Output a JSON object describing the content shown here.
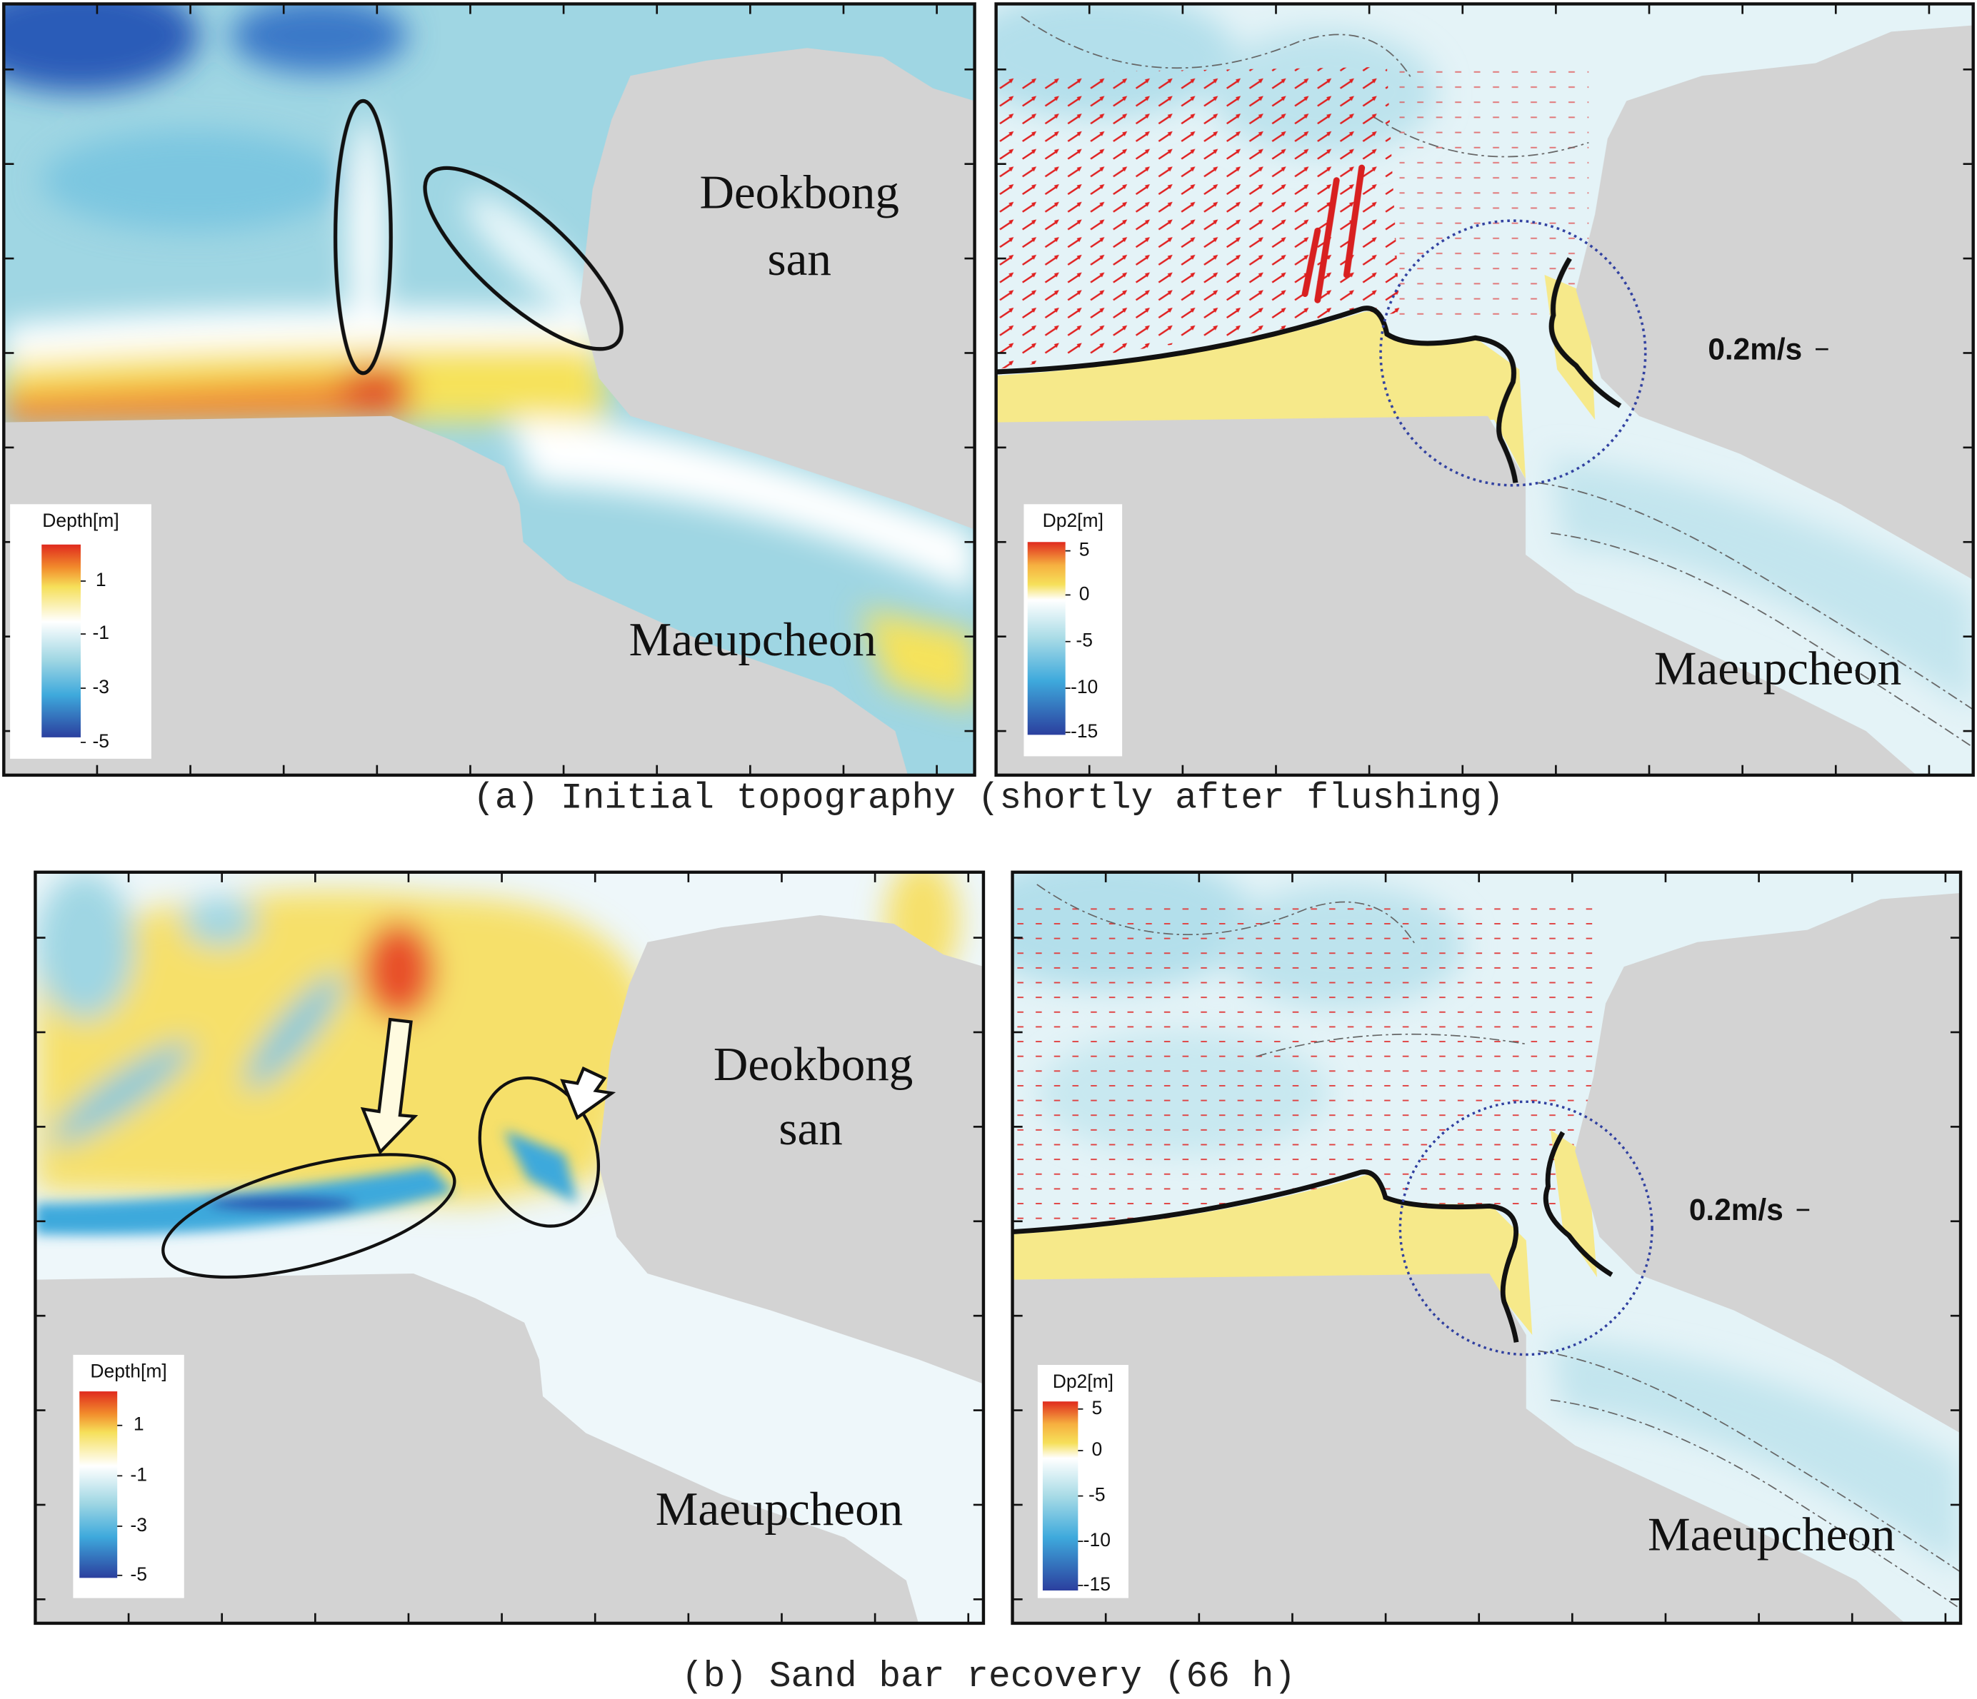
{
  "panels": [
    {
      "labels": [
        "Deokbong",
        "san",
        "Maeupcheon"
      ],
      "colorbar": {
        "title": "Depth[m]",
        "ticks": [
          "1",
          "-1",
          "-3",
          "-5"
        ]
      }
    },
    {
      "labels": [
        "0.2m/s",
        "Maeupcheon"
      ],
      "colorbar": {
        "title": "Dp2[m]",
        "ticks": [
          "5",
          "0",
          "-5",
          "-10",
          "-15"
        ]
      }
    },
    {
      "labels": [
        "Deokbong",
        "san",
        "Maeupcheon"
      ],
      "colorbar": {
        "title": "Depth[m]",
        "ticks": [
          "1",
          "-1",
          "-3",
          "-5"
        ]
      }
    },
    {
      "labels": [
        "0.2m/s",
        "Maeupcheon"
      ],
      "colorbar": {
        "title": "Dp2[m]",
        "ticks": [
          "5",
          "0",
          "-5",
          "-10",
          "-15"
        ]
      }
    }
  ],
  "captions": [
    "(a) Initial topography (shortly after flushing)",
    "(b) Sand bar recovery (66 h)"
  ]
}
